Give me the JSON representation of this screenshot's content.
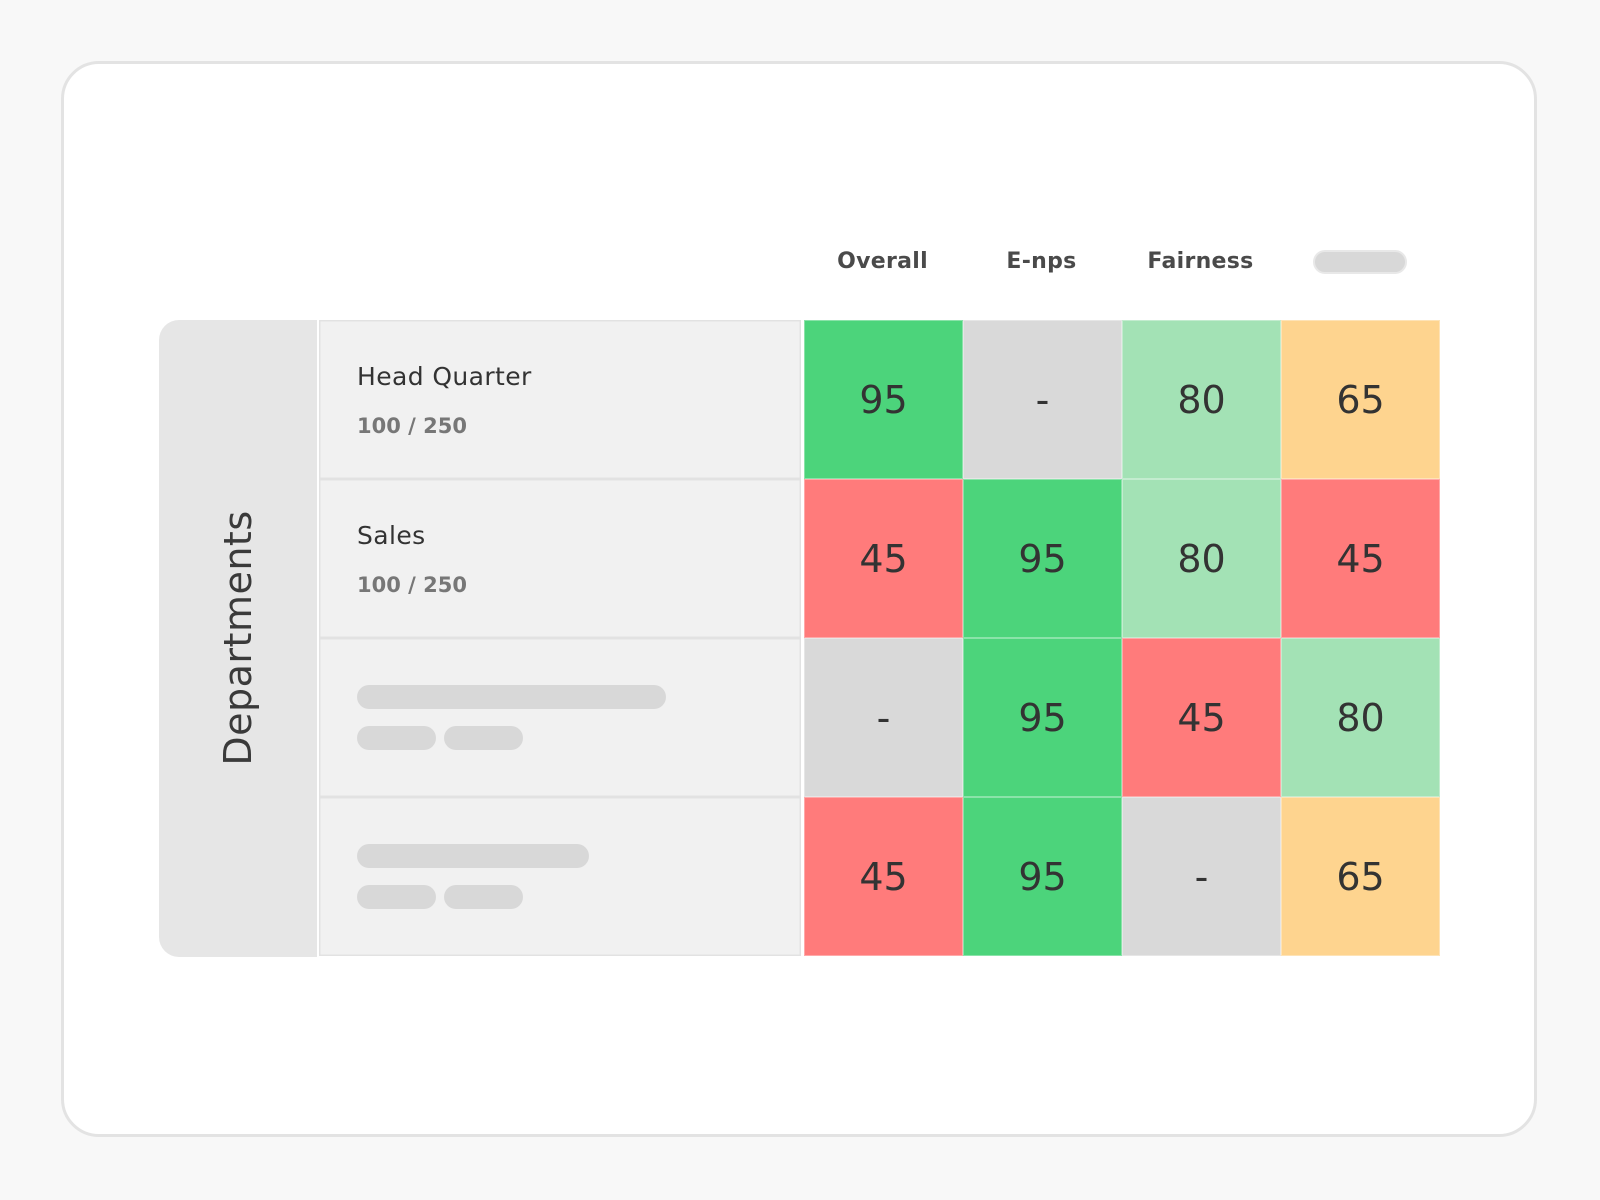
{
  "columns": [
    {
      "label": "Overall",
      "placeholder": false
    },
    {
      "label": "E-nps",
      "placeholder": false
    },
    {
      "label": "Fairness",
      "placeholder": false
    },
    {
      "label": "",
      "placeholder": true
    }
  ],
  "group_label": "Departments",
  "rows": [
    {
      "name": "Head Quarter",
      "count": "100 / 250",
      "placeholder": false,
      "cells": [
        {
          "value": "95",
          "color": "#4cd47b"
        },
        {
          "value": "-",
          "color": "#d9d9d9"
        },
        {
          "value": "80",
          "color": "#a3e2b5"
        },
        {
          "value": "65",
          "color": "#fed48f"
        }
      ]
    },
    {
      "name": "Sales",
      "count": "100 / 250",
      "placeholder": false,
      "cells": [
        {
          "value": "45",
          "color": "#ff7b7b"
        },
        {
          "value": "95",
          "color": "#4cd47b"
        },
        {
          "value": "80",
          "color": "#a3e2b5"
        },
        {
          "value": "45",
          "color": "#ff7b7b"
        }
      ]
    },
    {
      "name": "",
      "count": "",
      "placeholder": true,
      "cells": [
        {
          "value": "-",
          "color": "#d9d9d9"
        },
        {
          "value": "95",
          "color": "#4cd47b"
        },
        {
          "value": "45",
          "color": "#ff7b7b"
        },
        {
          "value": "80",
          "color": "#a3e2b5"
        }
      ]
    },
    {
      "name": "",
      "count": "",
      "placeholder": true,
      "cells": [
        {
          "value": "45",
          "color": "#ff7b7b"
        },
        {
          "value": "95",
          "color": "#4cd47b"
        },
        {
          "value": "-",
          "color": "#d9d9d9"
        },
        {
          "value": "65",
          "color": "#fed48f"
        }
      ]
    }
  ]
}
